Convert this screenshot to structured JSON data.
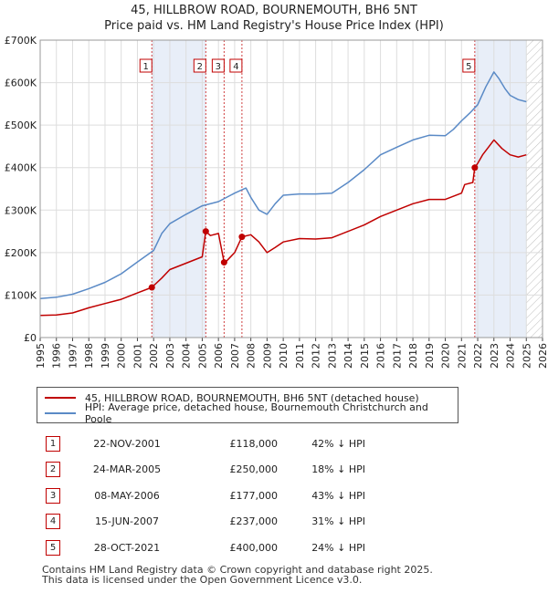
{
  "title": "45, HILLBROW ROAD, BOURNEMOUTH, BH6 5NT",
  "subtitle": "Price paid vs. HM Land Registry's House Price Index (HPI)",
  "chart_data": {
    "type": "line",
    "title": "45, HILLBROW ROAD, BOURNEMOUTH, BH6 5NT",
    "subtitle": "Price paid vs. HM Land Registry's House Price Index (HPI)",
    "xlabel": "",
    "ylabel": "",
    "xlim": [
      1995,
      2026
    ],
    "ylim": [
      0,
      700000
    ],
    "grid": true,
    "x_ticks": [
      "1995",
      "1996",
      "1997",
      "1998",
      "1999",
      "2000",
      "2001",
      "2002",
      "2003",
      "2004",
      "2005",
      "2006",
      "2007",
      "2008",
      "2009",
      "2010",
      "2011",
      "2012",
      "2013",
      "2014",
      "2015",
      "2016",
      "2017",
      "2018",
      "2019",
      "2020",
      "2021",
      "2022",
      "2023",
      "2024",
      "2025",
      "2026"
    ],
    "y_ticks": [
      {
        "value": 0,
        "label": "£0"
      },
      {
        "value": 100000,
        "label": "£100K"
      },
      {
        "value": 200000,
        "label": "£200K"
      },
      {
        "value": 300000,
        "label": "£300K"
      },
      {
        "value": 400000,
        "label": "£400K"
      },
      {
        "value": 500000,
        "label": "£500K"
      },
      {
        "value": 600000,
        "label": "£600K"
      },
      {
        "value": 700000,
        "label": "£700K"
      }
    ],
    "series": [
      {
        "name": "45, HILLBROW ROAD, BOURNEMOUTH, BH6 5NT (detached house)",
        "color": "#c00000",
        "x": [
          1995,
          1996,
          1997,
          1998,
          1999,
          2000,
          2001,
          2001.89,
          2002.5,
          2003,
          2004,
          2005,
          2005.22,
          2005.5,
          2006,
          2006.35,
          2006.5,
          2007,
          2007.45,
          2008,
          2008.5,
          2009,
          2009.5,
          2010,
          2011,
          2012,
          2013,
          2014,
          2015,
          2016,
          2017,
          2018,
          2019,
          2020,
          2021,
          2021.2,
          2021.7,
          2021.82,
          2022,
          2022.3,
          2022.7,
          2023,
          2023.5,
          2024,
          2024.5,
          2025
        ],
        "values": [
          52000,
          53000,
          58000,
          70000,
          80000,
          90000,
          105000,
          118000,
          140000,
          160000,
          175000,
          190000,
          250000,
          240000,
          245000,
          177000,
          180000,
          200000,
          237000,
          242000,
          225000,
          200000,
          212000,
          225000,
          233000,
          232000,
          235000,
          250000,
          265000,
          285000,
          300000,
          315000,
          325000,
          325000,
          340000,
          360000,
          365000,
          400000,
          410000,
          430000,
          450000,
          465000,
          445000,
          430000,
          425000,
          430000
        ]
      },
      {
        "name": "HPI: Average price, detached house, Bournemouth Christchurch and Poole",
        "color": "#5a8ac6",
        "x": [
          1995,
          1996,
          1997,
          1998,
          1999,
          2000,
          2001,
          2002,
          2002.5,
          2003,
          2004,
          2005,
          2006,
          2007,
          2007.7,
          2008,
          2008.5,
          2009,
          2009.5,
          2010,
          2011,
          2012,
          2013,
          2014,
          2015,
          2016,
          2017,
          2018,
          2019,
          2020,
          2020.5,
          2021,
          2021.5,
          2022,
          2022.5,
          2023,
          2023.3,
          2023.7,
          2024,
          2024.5,
          2025
        ],
        "values": [
          92000,
          95000,
          102000,
          115000,
          130000,
          150000,
          178000,
          205000,
          245000,
          268000,
          290000,
          310000,
          320000,
          340000,
          352000,
          330000,
          300000,
          290000,
          315000,
          335000,
          338000,
          338000,
          340000,
          365000,
          395000,
          430000,
          448000,
          465000,
          476000,
          475000,
          490000,
          510000,
          528000,
          548000,
          590000,
          625000,
          610000,
          585000,
          570000,
          560000,
          555000
        ]
      }
    ],
    "sales": [
      {
        "id": "1",
        "date": "22-NOV-2001",
        "x": 2001.89,
        "price": 118000,
        "price_label": "£118,000",
        "hpi_note": "42% ↓ HPI"
      },
      {
        "id": "2",
        "date": "24-MAR-2005",
        "x": 2005.22,
        "price": 250000,
        "price_label": "£250,000",
        "hpi_note": "18% ↓ HPI"
      },
      {
        "id": "3",
        "date": "08-MAY-2006",
        "x": 2006.35,
        "price": 177000,
        "price_label": "£177,000",
        "hpi_note": "43% ↓ HPI"
      },
      {
        "id": "4",
        "date": "15-JUN-2007",
        "x": 2007.45,
        "price": 237000,
        "price_label": "£237,000",
        "hpi_note": "31% ↓ HPI"
      },
      {
        "id": "5",
        "date": "28-OCT-2021",
        "x": 2021.82,
        "price": 400000,
        "price_label": "£400,000",
        "hpi_note": "24% ↓ HPI"
      }
    ],
    "shaded_periods": [
      [
        2001.89,
        2005.22
      ],
      [
        2021.82,
        2025.0
      ]
    ],
    "hatched_from": 2025.0
  },
  "legend": [
    {
      "label": "45, HILLBROW ROAD, BOURNEMOUTH, BH6 5NT (detached house)",
      "color": "#c00000"
    },
    {
      "label": "HPI: Average price, detached house, Bournemouth Christchurch and Poole",
      "color": "#5a8ac6"
    }
  ],
  "footer": {
    "line1": "Contains HM Land Registry data © Crown copyright and database right 2025.",
    "line2": "This data is licensed under the Open Government Licence v3.0."
  }
}
